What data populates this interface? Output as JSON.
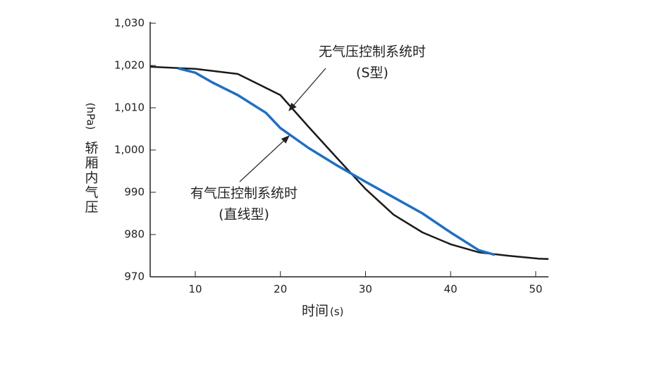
{
  "chart_data": {
    "type": "line",
    "xlabel": "时间",
    "xlabel_unit": "(s)",
    "ylabel": "轿厢内气压",
    "ylabel_unit": "(hPa)",
    "xlim": [
      4.7,
      51.5
    ],
    "xticks": [
      10,
      20,
      30,
      40,
      50
    ],
    "ylim": [
      970,
      1030
    ],
    "yticks": [
      970,
      980,
      990,
      {
        "value": 1000,
        "label": "1,000"
      },
      {
        "value": 1010,
        "label": "1,010"
      },
      {
        "value": 1020,
        "label": "1,020"
      },
      {
        "value": 1030,
        "label": "1,030"
      }
    ],
    "series": [
      {
        "name": "无气压控制系统时 (S型)",
        "color": "#1a1a1a",
        "x": [
          4.7,
          10,
          15,
          20,
          23.3,
          26.7,
          30,
          33.3,
          36.7,
          40,
          43.3,
          46.7,
          50.3,
          51.5
        ],
        "values": [
          1019.7,
          1019.2,
          1018,
          1013,
          1005.5,
          998,
          990.8,
          984.7,
          980.5,
          977.7,
          975.8,
          975,
          974.3,
          974.2
        ]
      },
      {
        "name": "有气压控制系统时 (直线型)",
        "color": "#1f6fc4",
        "x": [
          8,
          10,
          12,
          15,
          18.3,
          20,
          23.3,
          26.7,
          30,
          33.3,
          36.7,
          40,
          43.3,
          45.2
        ],
        "values": [
          1019.3,
          1018.3,
          1016,
          1013,
          1008.8,
          1005.2,
          1000.5,
          996.3,
          992.5,
          988.8,
          985,
          980.5,
          976.3,
          975.2
        ]
      }
    ],
    "annotations": [
      {
        "lines": [
          "无气压控制系统时",
          "(S型)"
        ]
      },
      {
        "lines": [
          "有气压控制系统时",
          "(直线型)"
        ]
      }
    ]
  }
}
